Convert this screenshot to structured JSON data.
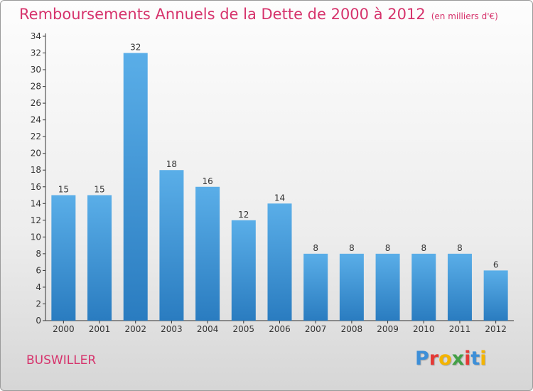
{
  "header": {
    "title": "Remboursements Annuels de la Dette de 2000 à 2012",
    "unit": "(en milliers d'€)"
  },
  "footer": {
    "commune": "BUSWILLER",
    "logo": [
      "P",
      "r",
      "o",
      "x",
      "i",
      "t",
      "i"
    ]
  },
  "colors": {
    "title": "#d6336c",
    "bar_top": "#5aaee8",
    "bar_bottom": "#2a7cc0",
    "logo": [
      "#3d8fd8",
      "#e53935",
      "#f4b400",
      "#43a047",
      "#e53935",
      "#3d8fd8",
      "#f4b400"
    ]
  },
  "chart_data": {
    "type": "bar",
    "categories": [
      "2000",
      "2001",
      "2002",
      "2003",
      "2004",
      "2005",
      "2006",
      "2007",
      "2008",
      "2009",
      "2010",
      "2011",
      "2012"
    ],
    "values": [
      15,
      15,
      32,
      18,
      16,
      12,
      14,
      8,
      8,
      8,
      8,
      8,
      6
    ],
    "title": "Remboursements Annuels de la Dette de 2000 à 2012",
    "ylim": [
      0,
      34
    ],
    "yticks": [
      0,
      2,
      4,
      6,
      8,
      10,
      12,
      14,
      16,
      18,
      20,
      22,
      24,
      26,
      28,
      30,
      32,
      34
    ],
    "grid": false,
    "data_labels": true
  }
}
